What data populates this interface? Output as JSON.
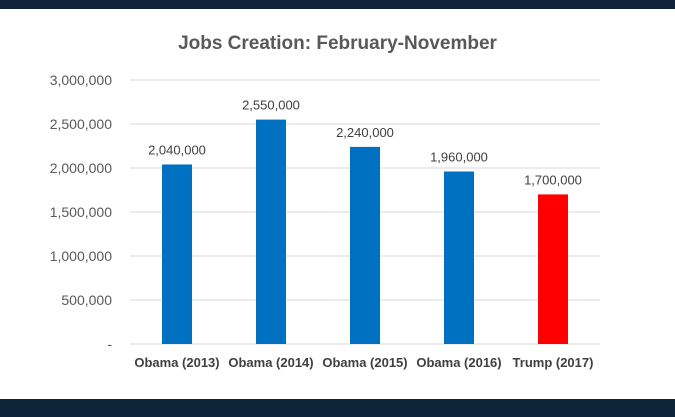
{
  "chart_data": {
    "type": "bar",
    "title": "Jobs Creation: February-November",
    "categories": [
      "Obama (2013)",
      "Obama (2014)",
      "Obama (2015)",
      "Obama (2016)",
      "Trump (2017)"
    ],
    "values": [
      2040000,
      2550000,
      2240000,
      1960000,
      1700000
    ],
    "data_labels": [
      "2,040,000",
      "2,550,000",
      "2,240,000",
      "1,960,000",
      "1,700,000"
    ],
    "bar_colors": [
      "#0070c0",
      "#0070c0",
      "#0070c0",
      "#0070c0",
      "#ff0000"
    ],
    "ylim": [
      0,
      3000000
    ],
    "yticks": [
      0,
      500000,
      1000000,
      1500000,
      2000000,
      2500000,
      3000000
    ],
    "ytick_labels": [
      "-",
      "500,000",
      "1,000,000",
      "1,500,000",
      "2,000,000",
      "2,500,000",
      "3,000,000"
    ],
    "grid": true,
    "legend": "none"
  },
  "colors": {
    "frame": "#0e2438",
    "gridline": "#d9d9d9"
  }
}
